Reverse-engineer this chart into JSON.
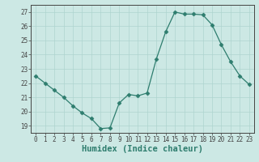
{
  "x": [
    0,
    1,
    2,
    3,
    4,
    5,
    6,
    7,
    8,
    9,
    10,
    11,
    12,
    13,
    14,
    15,
    16,
    17,
    18,
    19,
    20,
    21,
    22,
    23
  ],
  "y": [
    22.5,
    22.0,
    21.5,
    21.0,
    20.4,
    19.9,
    19.5,
    18.8,
    18.85,
    20.6,
    21.2,
    21.1,
    21.3,
    23.7,
    25.6,
    27.0,
    26.85,
    26.85,
    26.8,
    26.1,
    24.7,
    23.5,
    22.5,
    21.9
  ],
  "line_color": "#2e7d6e",
  "marker": "D",
  "marker_size": 2.5,
  "bg_color": "#cce8e4",
  "grid_color": "#aed4cf",
  "xlabel": "Humidex (Indice chaleur)",
  "xlim": [
    -0.5,
    23.5
  ],
  "ylim": [
    18.5,
    27.5
  ],
  "yticks": [
    19,
    20,
    21,
    22,
    23,
    24,
    25,
    26,
    27
  ],
  "xticks": [
    0,
    1,
    2,
    3,
    4,
    5,
    6,
    7,
    8,
    9,
    10,
    11,
    12,
    13,
    14,
    15,
    16,
    17,
    18,
    19,
    20,
    21,
    22,
    23
  ],
  "tick_fontsize": 5.5,
  "xlabel_fontsize": 7.5,
  "spine_color": "#444444",
  "axis_bg_color": "#cce8e4"
}
